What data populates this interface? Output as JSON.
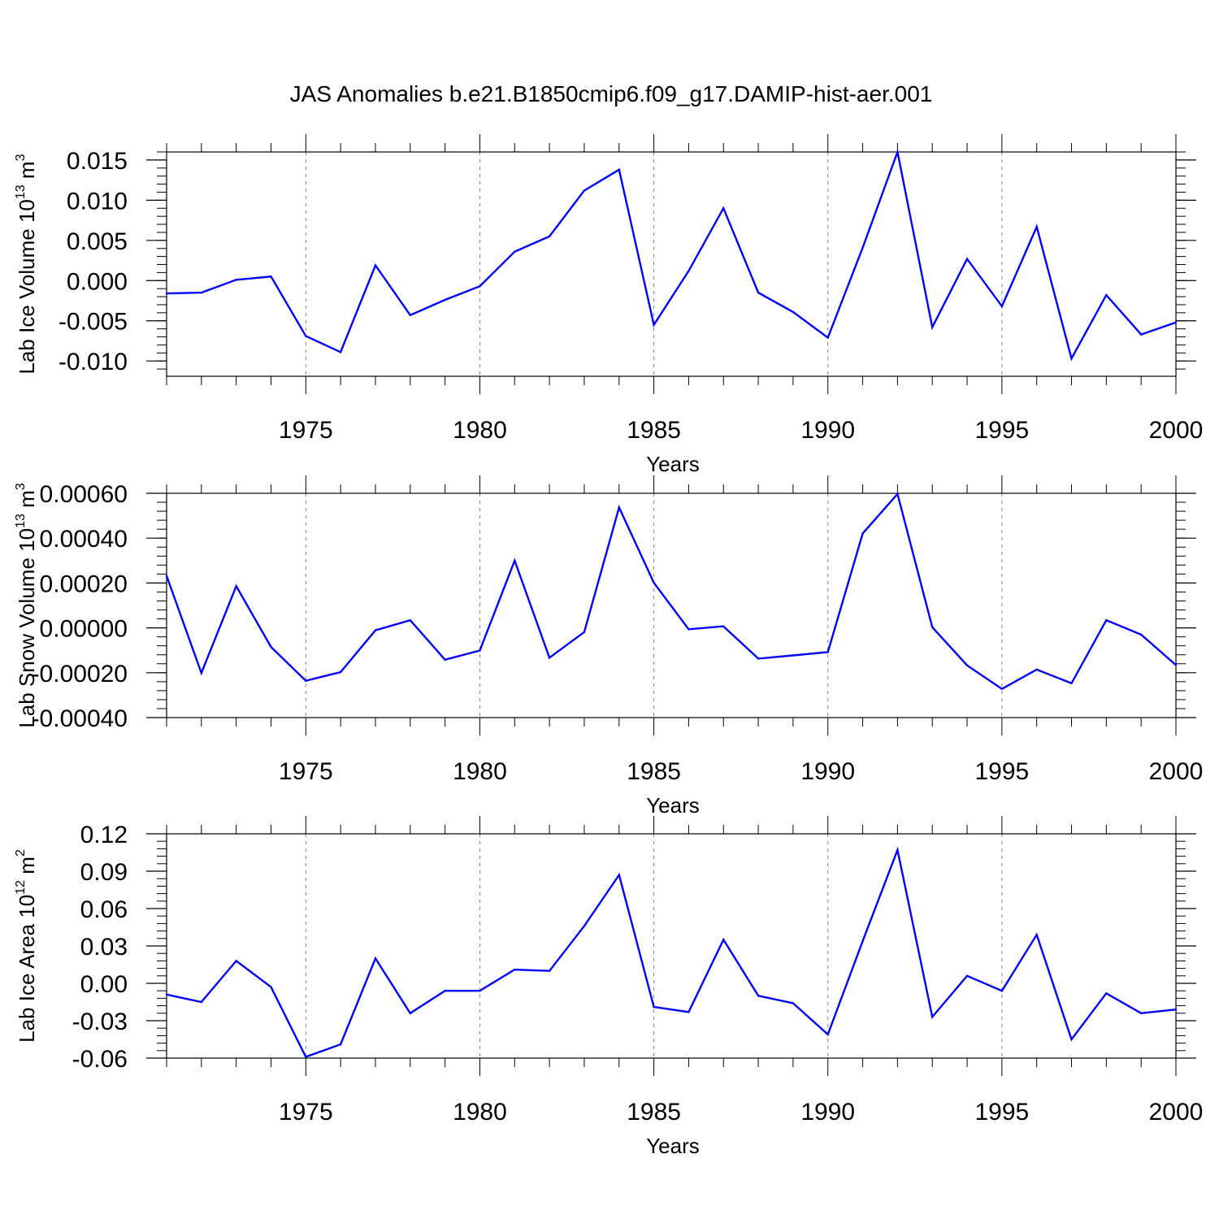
{
  "title": "JAS Anomalies b.e21.B1850cmip6.f09_g17.DAMIP-hist-aer.001",
  "colors": {
    "line": "#0000ff",
    "axis": "#000000",
    "grid": "#808080"
  },
  "chart_data": [
    {
      "type": "line",
      "ylabel": "Lab Ice Volume",
      "ylabel_exp": "13",
      "ylabel_unit": "m",
      "ylabel_unit_exp": "3",
      "xlabel": "Years",
      "xlim": [
        1971,
        2000
      ],
      "ylim": [
        -0.0119,
        0.016
      ],
      "yticks": [
        -0.01,
        -0.005,
        0.0,
        0.005,
        0.01,
        0.015
      ],
      "ytick_labels": [
        "-0.010",
        "-0.005",
        "0.000",
        "0.005",
        "0.010",
        "0.015"
      ],
      "yminor_step": 0.001,
      "xticks": [
        1975,
        1980,
        1985,
        1990,
        1995,
        2000
      ],
      "xtick_labels": [
        "1975",
        "1980",
        "1985",
        "1990",
        "1995",
        "2000"
      ],
      "grid_x": [
        1975,
        1980,
        1985,
        1990,
        1995
      ],
      "x": [
        1971,
        1972,
        1973,
        1974,
        1975,
        1976,
        1977,
        1978,
        1979,
        1980,
        1981,
        1982,
        1983,
        1984,
        1985,
        1986,
        1987,
        1988,
        1989,
        1990,
        1991,
        1992,
        1993,
        1994,
        1995,
        1996,
        1997,
        1998,
        1999,
        2000
      ],
      "series": [
        {
          "name": "Lab Ice Volume",
          "values": [
            -0.0016,
            -0.0015,
            0.0001,
            0.0005,
            -0.0069,
            -0.0089,
            0.0019,
            -0.0043,
            -0.0024,
            -0.0007,
            0.0036,
            0.0055,
            0.0112,
            0.0138,
            -0.0055,
            0.0012,
            0.009,
            -0.0015,
            -0.0039,
            -0.0071,
            0.0041,
            0.016,
            -0.0058,
            0.0027,
            -0.0032,
            0.0067,
            -0.0097,
            -0.0018,
            -0.0067,
            -0.0052
          ]
        }
      ]
    },
    {
      "type": "line",
      "ylabel": "Lab Snow Volume",
      "ylabel_exp": "13",
      "ylabel_unit": "m",
      "ylabel_unit_exp": "3",
      "xlabel": "Years",
      "xlim": [
        1971,
        2000
      ],
      "ylim": [
        -0.0004,
        0.0006
      ],
      "yticks": [
        -0.0004,
        -0.0002,
        0.0,
        0.0002,
        0.0004,
        0.0006
      ],
      "ytick_labels": [
        "-0.00040",
        "-0.00020",
        "0.00000",
        "0.00020",
        "0.00040",
        "0.00060"
      ],
      "yminor_step": 4e-05,
      "xticks": [
        1975,
        1980,
        1985,
        1990,
        1995,
        2000
      ],
      "xtick_labels": [
        "1975",
        "1980",
        "1985",
        "1990",
        "1995",
        "2000"
      ],
      "grid_x": [
        1975,
        1980,
        1985,
        1990,
        1995
      ],
      "x": [
        1971,
        1972,
        1973,
        1974,
        1975,
        1976,
        1977,
        1978,
        1979,
        1980,
        1981,
        1982,
        1983,
        1984,
        1985,
        1986,
        1987,
        1988,
        1989,
        1990,
        1991,
        1992,
        1993,
        1994,
        1995,
        1996,
        1997,
        1998,
        1999,
        2000
      ],
      "series": [
        {
          "name": "Lab Snow Volume",
          "values": [
            0.000232,
            -0.000201,
            0.000186,
            -8.5e-05,
            -0.000236,
            -0.000197,
            -1.1e-05,
            3.4e-05,
            -0.000142,
            -0.000101,
            0.0003,
            -0.000133,
            -1.9e-05,
            0.000537,
            0.000201,
            -6e-06,
            7e-06,
            -0.000137,
            -0.000123,
            -0.000108,
            0.000421,
            0.000597,
            3e-06,
            -0.000167,
            -0.000272,
            -0.000186,
            -0.000247,
            3.4e-05,
            -3e-05,
            -0.000166
          ]
        }
      ]
    },
    {
      "type": "line",
      "ylabel": "Lab Ice Area",
      "ylabel_exp": "12",
      "ylabel_unit": "m",
      "ylabel_unit_exp": "2",
      "xlabel": "Years",
      "xlim": [
        1971,
        2000
      ],
      "ylim": [
        -0.06,
        0.12
      ],
      "yticks": [
        -0.06,
        -0.03,
        0.0,
        0.03,
        0.06,
        0.09,
        0.12
      ],
      "ytick_labels": [
        "-0.06",
        "-0.03",
        "0.00",
        "0.03",
        "0.06",
        "0.09",
        "0.12"
      ],
      "yminor_step": 0.006,
      "xticks": [
        1975,
        1980,
        1985,
        1990,
        1995,
        2000
      ],
      "xtick_labels": [
        "1975",
        "1980",
        "1985",
        "1990",
        "1995",
        "2000"
      ],
      "grid_x": [
        1975,
        1980,
        1985,
        1990,
        1995
      ],
      "x": [
        1971,
        1972,
        1973,
        1974,
        1975,
        1976,
        1977,
        1978,
        1979,
        1980,
        1981,
        1982,
        1983,
        1984,
        1985,
        1986,
        1987,
        1988,
        1989,
        1990,
        1991,
        1992,
        1993,
        1994,
        1995,
        1996,
        1997,
        1998,
        1999,
        2000
      ],
      "series": [
        {
          "name": "Lab Ice Area",
          "values": [
            -0.009,
            -0.015,
            0.018,
            -0.003,
            -0.059,
            -0.049,
            0.02,
            -0.024,
            -0.006,
            -0.006,
            0.011,
            0.01,
            0.046,
            0.087,
            -0.019,
            -0.023,
            0.035,
            -0.01,
            -0.016,
            -0.041,
            0.034,
            0.107,
            -0.027,
            0.006,
            -0.006,
            0.039,
            -0.045,
            -0.008,
            -0.024,
            -0.021
          ]
        }
      ]
    }
  ]
}
